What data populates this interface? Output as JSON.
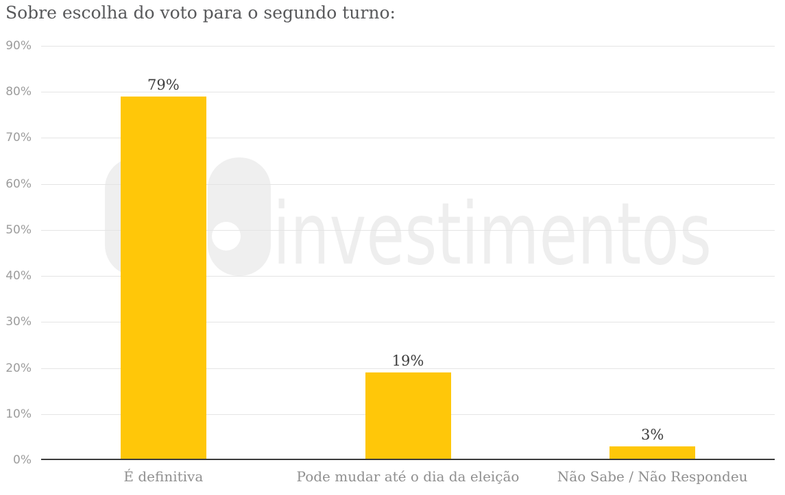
{
  "chart_data": {
    "type": "bar",
    "title": "Sobre escolha do voto para o segundo turno:",
    "categories": [
      "É definitiva",
      "Pode mudar até o dia da eleição",
      "Não Sabe / Não Respondeu"
    ],
    "values": [
      79,
      19,
      3
    ],
    "data_labels": [
      "79%",
      "19%",
      "3%"
    ],
    "y_axis": {
      "min": 0,
      "max": 90,
      "unit": "%",
      "ticks": [
        "0%",
        "10%",
        "20%",
        "30%",
        "40%",
        "50%",
        "60%",
        "70%",
        "80%",
        "90%"
      ]
    },
    "grid": true,
    "legend": false,
    "colors": {
      "bar": "#ffc709",
      "grid": "#e4e4e4",
      "axis": "#3a3a3a",
      "title": "#58595b",
      "y_tick_labels": "#9c9c9c",
      "category_labels": "#8f8f8f",
      "data_labels": "#3d3d3d",
      "watermark": "#eeeeee"
    },
    "watermark": {
      "icon": "xp-logo",
      "text": "investimentos"
    }
  }
}
